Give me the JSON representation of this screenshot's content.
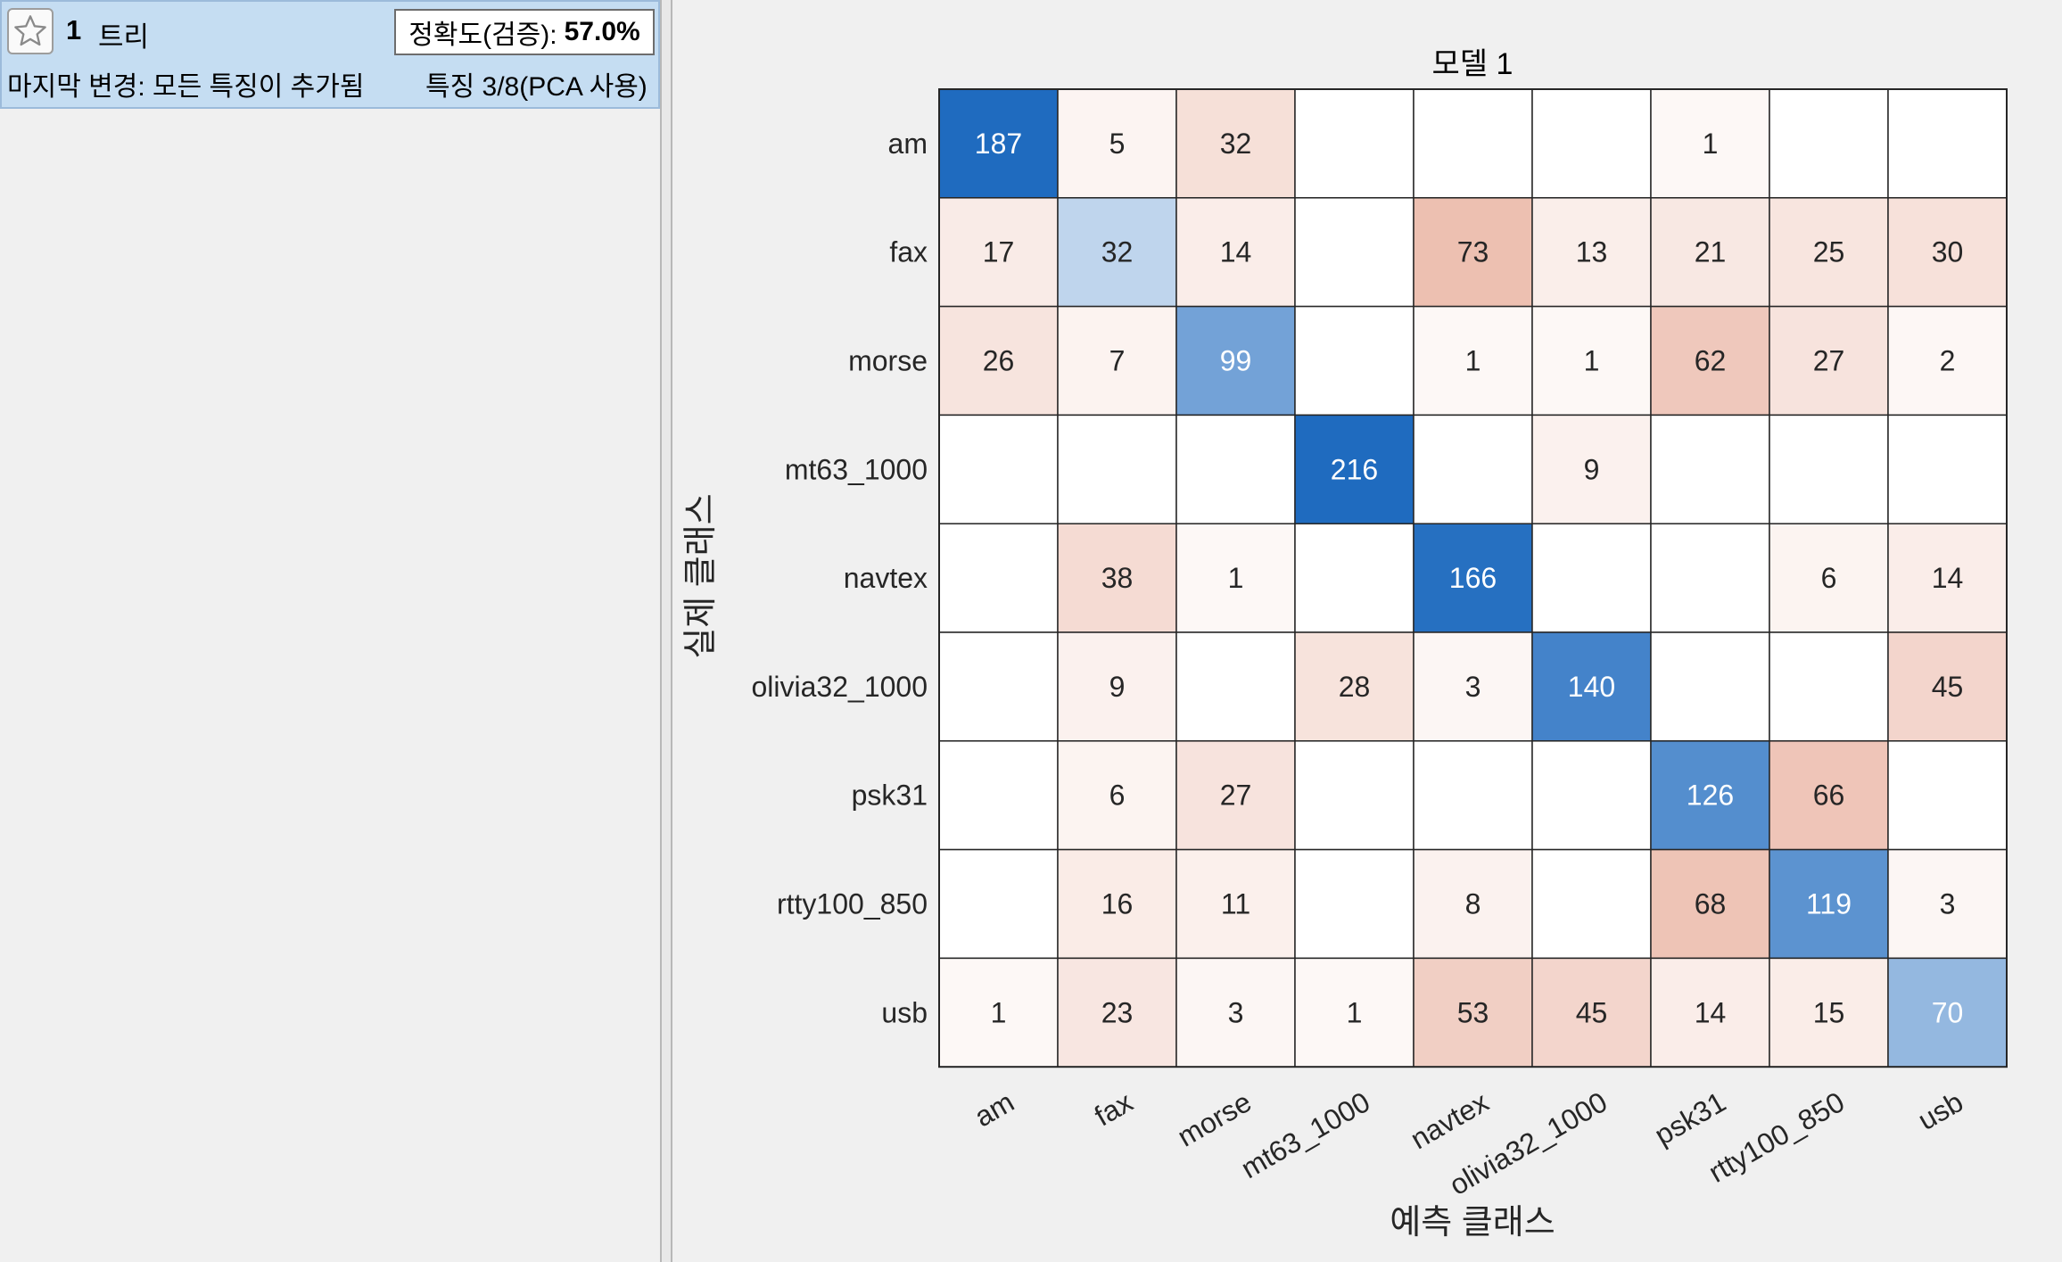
{
  "model_card": {
    "number": "1",
    "model_type": "트리",
    "accuracy_label": "정확도(검증):",
    "accuracy_value": "57.0%",
    "last_change": "마지막 변경: 모든 특징이 추가됨",
    "features": "특징 3/8(PCA 사용)",
    "icon": "star-icon"
  },
  "colors": {
    "card_bg": "#c5ddf2",
    "diag_high": "#1f6bbf",
    "offdiag_high": "#d9795a"
  },
  "chart_data": {
    "type": "heatmap",
    "title": "모델 1",
    "xlabel": "예측 클래스",
    "ylabel": "실제 클래스",
    "classes": [
      "am",
      "fax",
      "morse",
      "mt63_1000",
      "navtex",
      "olivia32_1000",
      "psk31",
      "rtty100_850",
      "usb"
    ],
    "matrix": [
      [
        187,
        5,
        32,
        null,
        null,
        null,
        1,
        null,
        null
      ],
      [
        17,
        32,
        14,
        null,
        73,
        13,
        21,
        25,
        30
      ],
      [
        26,
        7,
        99,
        null,
        1,
        1,
        62,
        27,
        2
      ],
      [
        null,
        null,
        null,
        216,
        null,
        9,
        null,
        null,
        null
      ],
      [
        null,
        38,
        1,
        null,
        166,
        null,
        null,
        6,
        14
      ],
      [
        null,
        9,
        null,
        28,
        3,
        140,
        null,
        null,
        45
      ],
      [
        null,
        6,
        27,
        null,
        null,
        null,
        126,
        66,
        null
      ],
      [
        null,
        16,
        11,
        null,
        8,
        null,
        68,
        119,
        3
      ],
      [
        1,
        23,
        3,
        1,
        53,
        45,
        14,
        15,
        70
      ]
    ]
  }
}
